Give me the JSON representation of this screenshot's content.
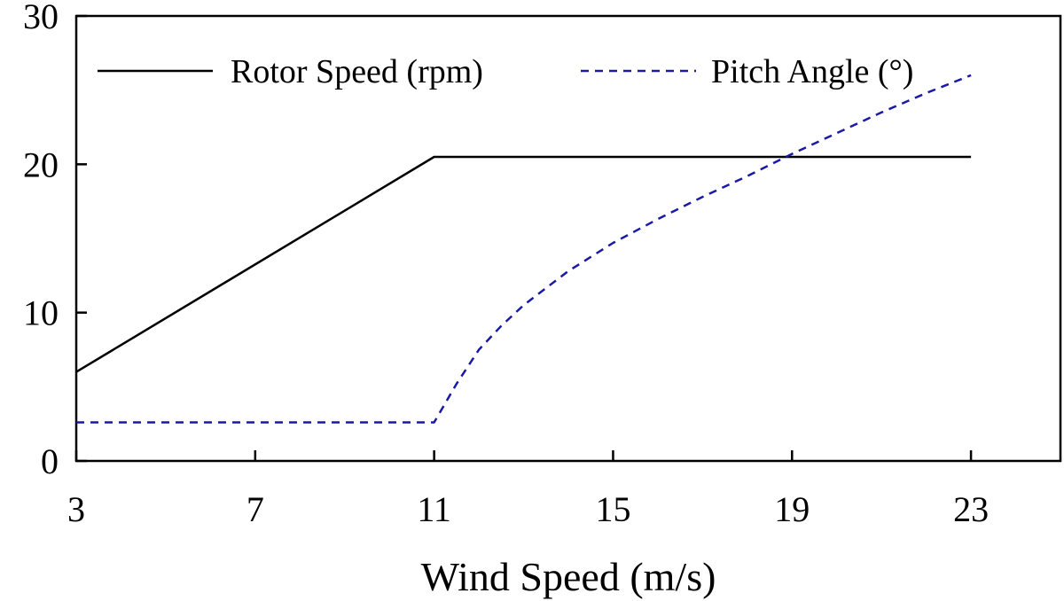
{
  "chart_data": {
    "type": "line",
    "title": "",
    "xlabel": "Wind Speed (m/s)",
    "ylabel": "",
    "xlim": [
      3,
      25
    ],
    "ylim": [
      0,
      30
    ],
    "xticks": [
      3,
      7,
      11,
      15,
      19,
      23
    ],
    "yticks": [
      0,
      10,
      20,
      30
    ],
    "grid": false,
    "legend_position": "top",
    "series": [
      {
        "name": "Rotor Speed (rpm)",
        "color": "#000000",
        "dash": "solid",
        "x": [
          3,
          11,
          23
        ],
        "y": [
          6,
          20.5,
          20.5
        ]
      },
      {
        "name": "Pitch Angle (°)",
        "color": "#1a1aa6",
        "dash": "dashed",
        "x": [
          3,
          11,
          11.5,
          12,
          12.5,
          13,
          14,
          15,
          16,
          17,
          18,
          19,
          20,
          21,
          22,
          23
        ],
        "y": [
          2.6,
          2.6,
          5.2,
          7.5,
          9.1,
          10.5,
          12.8,
          14.7,
          16.3,
          17.8,
          19.2,
          20.7,
          22.1,
          23.5,
          24.8,
          26.0
        ]
      }
    ]
  }
}
